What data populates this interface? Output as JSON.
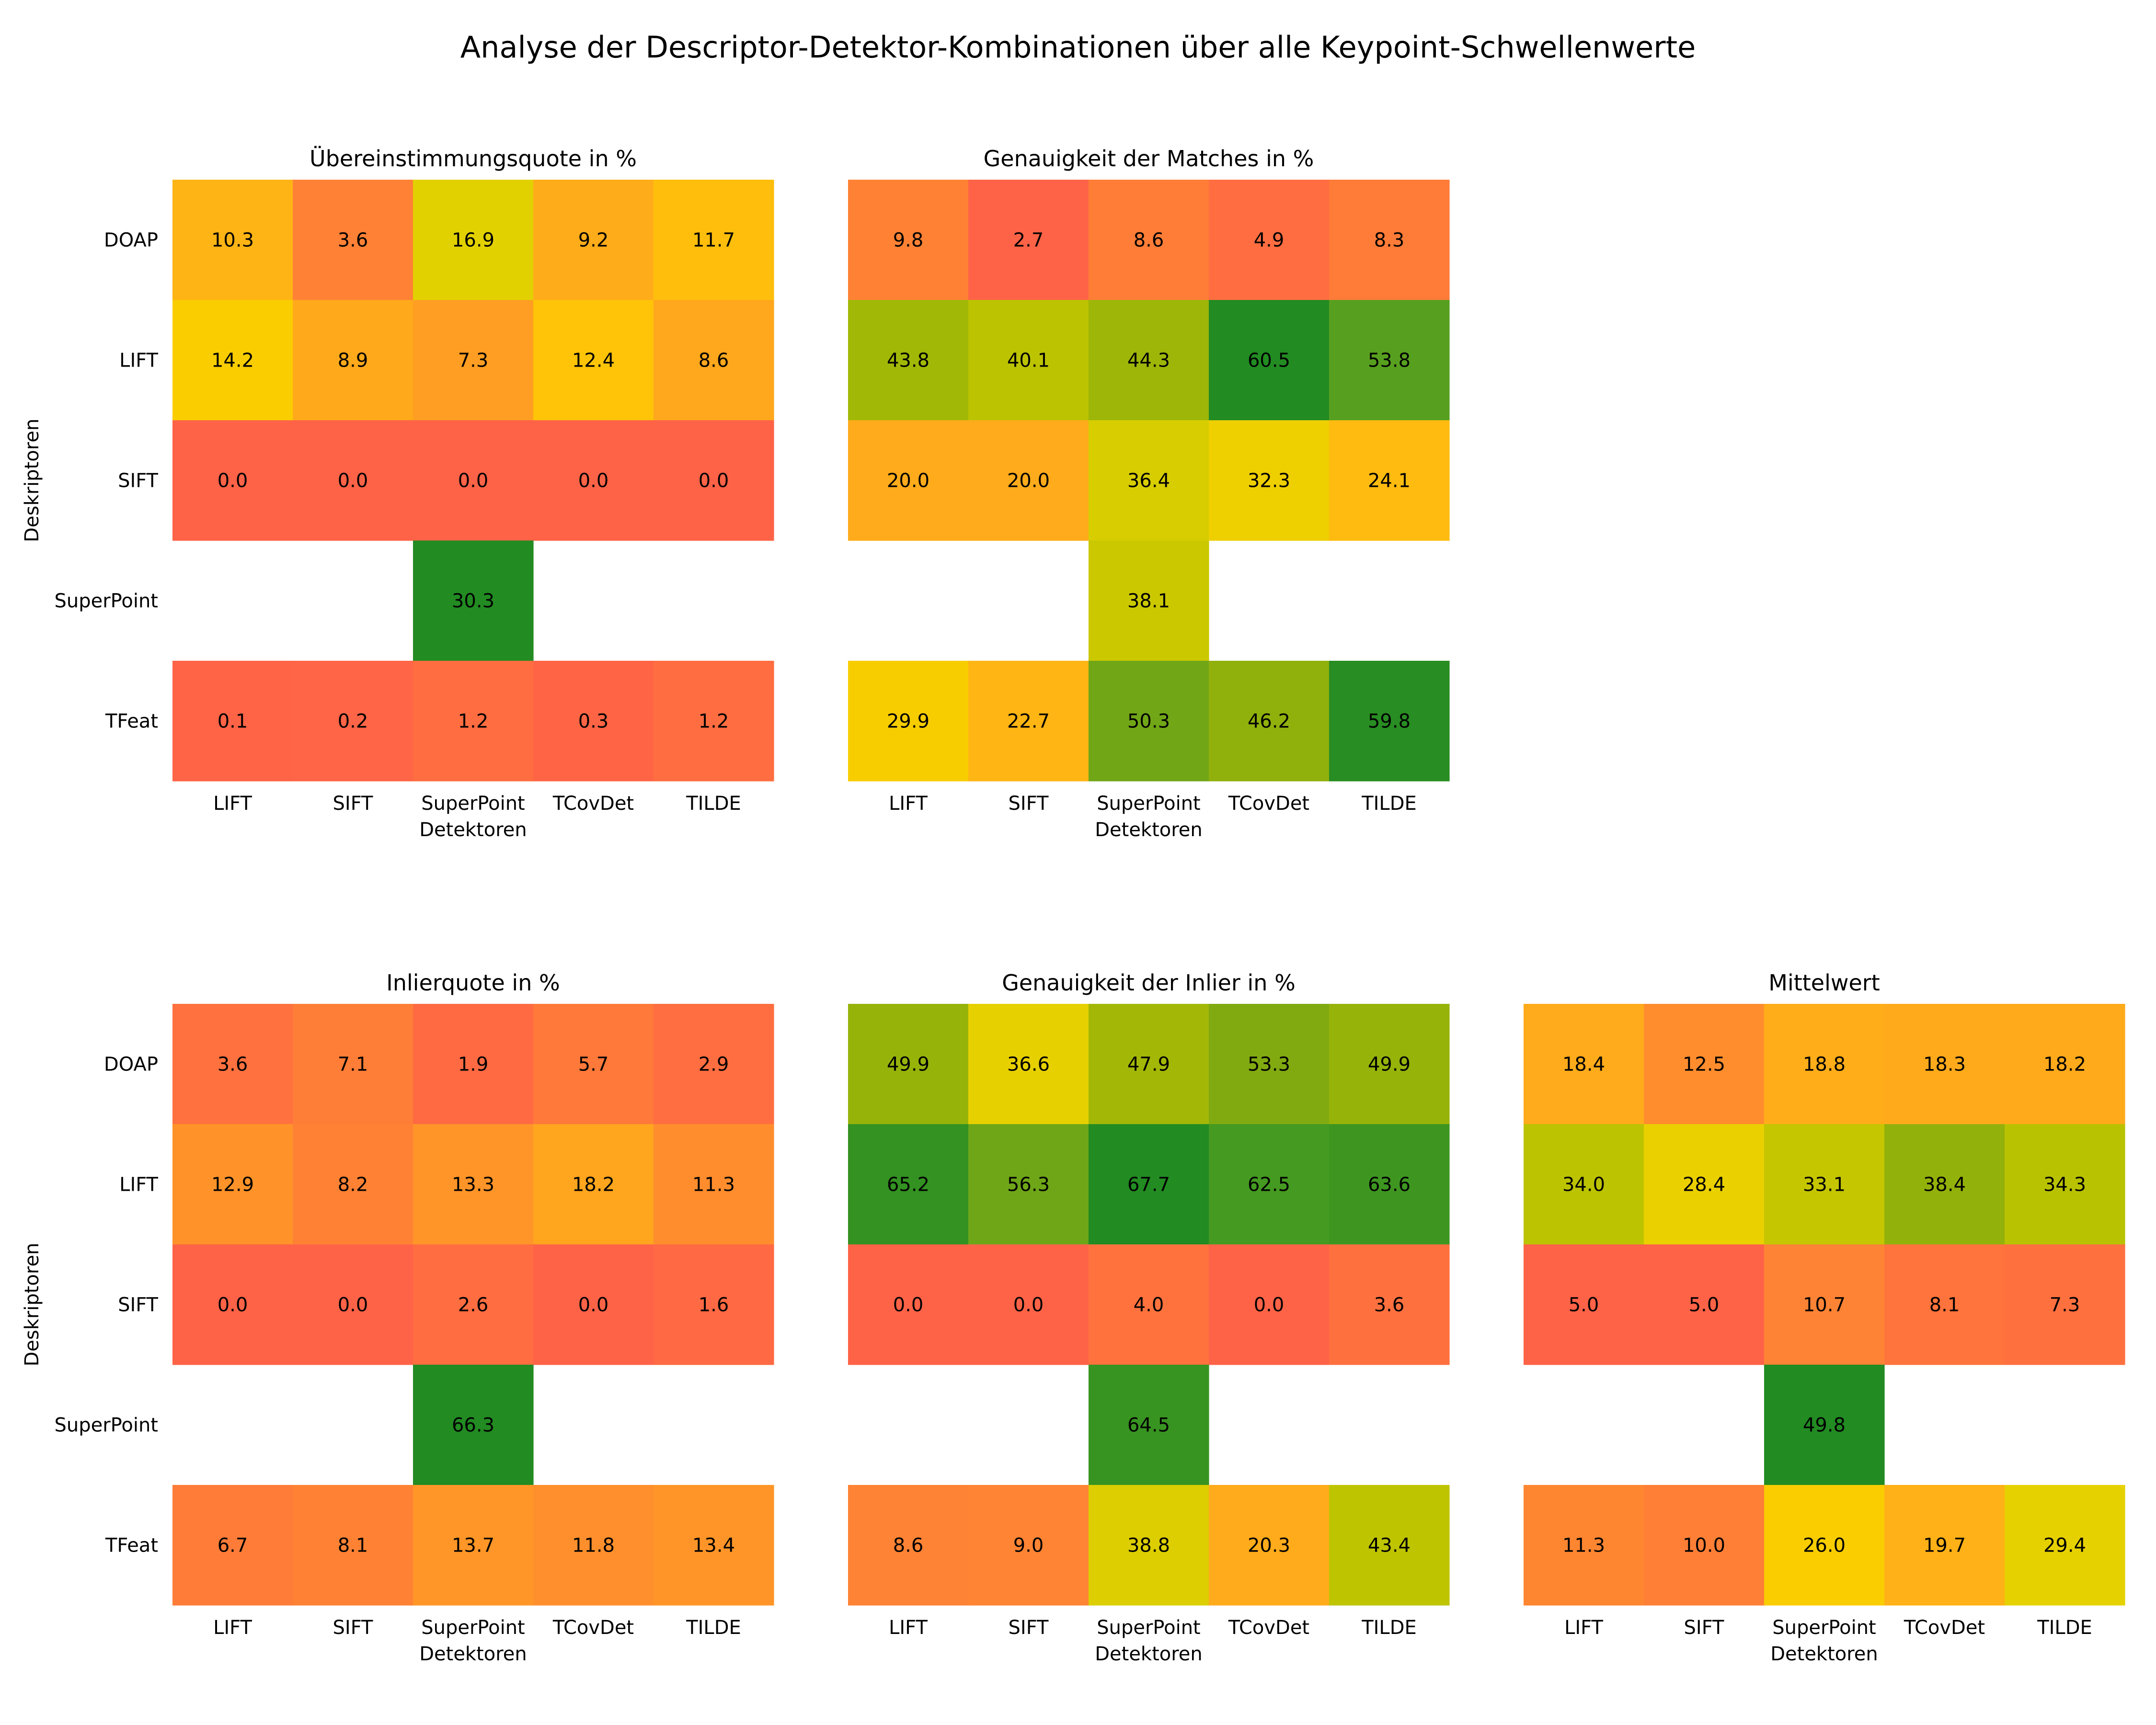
{
  "chart_data": {
    "type": "heatmap",
    "title": "Analyse der Descriptor-Detektor-Kombinationen über alle Keypoint-Schwellenwerte",
    "xlabel": "Detektoren",
    "ylabel": "Deskriptoren",
    "detectors": [
      "LIFT",
      "SIFT",
      "SuperPoint",
      "TCovDet",
      "TILDE"
    ],
    "descriptors": [
      "DOAP",
      "LIFT",
      "SIFT",
      "SuperPoint",
      "TFeat"
    ],
    "colorscale": [
      "#ff6347",
      "#ff7f36",
      "#ff9a25",
      "#ffb216",
      "#ffcc00",
      "#e3d100",
      "#b4c000",
      "#85ab10",
      "#55a020",
      "#228b22"
    ],
    "panels": [
      {
        "title": "Übereinstimmungsquote in %",
        "values": [
          [
            10.3,
            3.6,
            16.9,
            9.2,
            11.7
          ],
          [
            14.2,
            8.9,
            7.3,
            12.4,
            8.6
          ],
          [
            0.0,
            0.0,
            0.0,
            0.0,
            0.0
          ],
          [
            null,
            null,
            30.3,
            null,
            null
          ],
          [
            0.1,
            0.2,
            1.2,
            0.3,
            1.2
          ]
        ]
      },
      {
        "title": "Genauigkeit der Matches in %",
        "values": [
          [
            9.8,
            2.7,
            8.6,
            4.9,
            8.3
          ],
          [
            43.8,
            40.1,
            44.3,
            60.5,
            53.8
          ],
          [
            20.0,
            20.0,
            36.4,
            32.3,
            24.1
          ],
          [
            null,
            null,
            38.1,
            null,
            null
          ],
          [
            29.9,
            22.7,
            50.3,
            46.2,
            59.8
          ]
        ]
      },
      {
        "title": "Inlierquote in %",
        "values": [
          [
            3.6,
            7.1,
            1.9,
            5.7,
            2.9
          ],
          [
            12.9,
            8.2,
            13.3,
            18.2,
            11.3
          ],
          [
            0.0,
            0.0,
            2.6,
            0.0,
            1.6
          ],
          [
            null,
            null,
            66.3,
            null,
            null
          ],
          [
            6.7,
            8.1,
            13.7,
            11.8,
            13.4
          ]
        ]
      },
      {
        "title": "Genauigkeit der Inlier in %",
        "values": [
          [
            49.9,
            36.6,
            47.9,
            53.3,
            49.9
          ],
          [
            65.2,
            56.3,
            67.7,
            62.5,
            63.6
          ],
          [
            0.0,
            0.0,
            4.0,
            0.0,
            3.6
          ],
          [
            null,
            null,
            64.5,
            null,
            null
          ],
          [
            8.6,
            9.0,
            38.8,
            20.3,
            43.4
          ]
        ]
      },
      {
        "title": "Mittelwert",
        "values": [
          [
            18.4,
            12.5,
            18.8,
            18.3,
            18.2
          ],
          [
            34.0,
            28.4,
            33.1,
            38.4,
            34.3
          ],
          [
            5.0,
            5.0,
            10.7,
            8.1,
            7.3
          ],
          [
            null,
            null,
            49.8,
            null,
            null
          ],
          [
            11.3,
            10.0,
            26.0,
            19.7,
            29.4
          ]
        ]
      }
    ]
  }
}
